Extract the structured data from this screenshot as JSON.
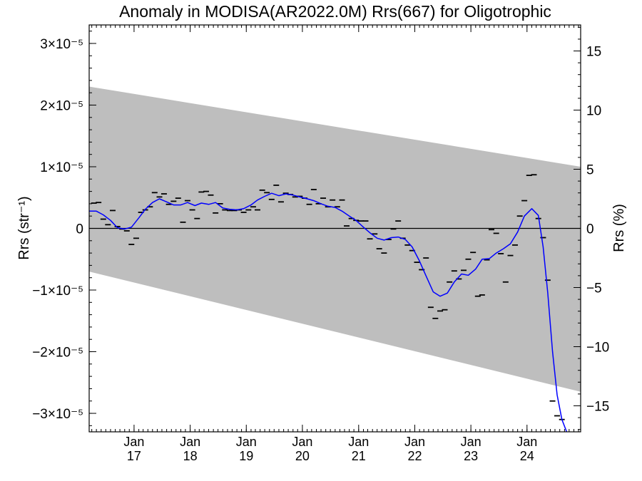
{
  "chart_data": {
    "type": "line",
    "title": "Anomaly in MODISA(AR2022.0M) Rrs(667) for Oligotrophic",
    "ylabel_left": "Rrs (str⁻¹)",
    "ylabel_right": "Rrs (%)",
    "ylim": [
      -3.3e-05,
      3.3e-05
    ],
    "ylim_right": [
      -17.2,
      17.2
    ],
    "xlim": [
      "2016-03-15",
      "2024-12-15"
    ],
    "left_ticks": [
      {
        "value": 3e-05,
        "label": "3×10⁻⁵"
      },
      {
        "value": 2e-05,
        "label": "2×10⁻⁵"
      },
      {
        "value": 1e-05,
        "label": "1×10⁻⁵"
      },
      {
        "value": 0,
        "label": "0"
      },
      {
        "value": -1e-05,
        "label": "−1×10⁻⁵"
      },
      {
        "value": -2e-05,
        "label": "−2×10⁻⁵"
      },
      {
        "value": -3e-05,
        "label": "−3×10⁻⁵"
      }
    ],
    "right_ticks": [
      {
        "value": 15,
        "label": "15"
      },
      {
        "value": 10,
        "label": "10"
      },
      {
        "value": 5,
        "label": "5"
      },
      {
        "value": 0,
        "label": "0"
      },
      {
        "value": -5,
        "label": "−5"
      },
      {
        "value": -10,
        "label": "−10"
      },
      {
        "value": -15,
        "label": "−15"
      }
    ],
    "x_ticks": [
      {
        "date": "2017-01-01",
        "month": "Jan",
        "year": "17"
      },
      {
        "date": "2018-01-01",
        "month": "Jan",
        "year": "18"
      },
      {
        "date": "2019-01-01",
        "month": "Jan",
        "year": "19"
      },
      {
        "date": "2020-01-01",
        "month": "Jan",
        "year": "20"
      },
      {
        "date": "2021-01-01",
        "month": "Jan",
        "year": "21"
      },
      {
        "date": "2022-01-01",
        "month": "Jan",
        "year": "22"
      },
      {
        "date": "2023-01-01",
        "month": "Jan",
        "year": "23"
      },
      {
        "date": "2024-01-01",
        "month": "Jan",
        "year": "24"
      }
    ],
    "uncertainty_band": {
      "color": "#bebebe",
      "upper": [
        [
          "2016-03-15",
          2.3e-05
        ],
        [
          "2024-12-15",
          1e-05
        ]
      ],
      "lower": [
        [
          "2016-03-15",
          -7e-06
        ],
        [
          "2024-12-15",
          -2.65e-05
        ]
      ]
    },
    "zero_line": true,
    "series": [
      {
        "style": "dash-marks",
        "color": "#000000",
        "points": [
          [
            "2016-04-15",
            4.1e-06
          ],
          [
            "2016-05-15",
            4.2e-06
          ],
          [
            "2016-06-15",
            1.5e-06
          ],
          [
            "2016-07-15",
            6e-07
          ],
          [
            "2016-08-15",
            2.9e-06
          ],
          [
            "2016-09-15",
            3e-07
          ],
          [
            "2016-10-15",
            -1e-07
          ],
          [
            "2016-11-15",
            -4e-07
          ],
          [
            "2016-12-15",
            -2.6e-06
          ],
          [
            "2017-01-15",
            -1.6e-06
          ],
          [
            "2017-02-15",
            2.6e-06
          ],
          [
            "2017-03-15",
            3e-06
          ],
          [
            "2017-04-15",
            3.5e-06
          ],
          [
            "2017-05-15",
            5.8e-06
          ],
          [
            "2017-06-15",
            5.1e-06
          ],
          [
            "2017-07-15",
            5.6e-06
          ],
          [
            "2017-08-15",
            3.9e-06
          ],
          [
            "2017-09-15",
            4.4e-06
          ],
          [
            "2017-10-15",
            4.9e-06
          ],
          [
            "2017-11-15",
            1e-06
          ],
          [
            "2017-12-15",
            4.5e-06
          ],
          [
            "2018-01-15",
            3e-06
          ],
          [
            "2018-02-15",
            1.6e-06
          ],
          [
            "2018-03-15",
            5.9e-06
          ],
          [
            "2018-04-15",
            6e-06
          ],
          [
            "2018-05-15",
            5.4e-06
          ],
          [
            "2018-06-15",
            2.5e-06
          ],
          [
            "2018-07-15",
            4e-06
          ],
          [
            "2018-08-15",
            3e-06
          ],
          [
            "2018-09-15",
            2.9e-06
          ],
          [
            "2018-10-15",
            2.9e-06
          ],
          [
            "2018-11-15",
            3e-06
          ],
          [
            "2018-12-15",
            2.6e-06
          ],
          [
            "2019-01-15",
            3e-06
          ],
          [
            "2019-02-15",
            3.5e-06
          ],
          [
            "2019-03-15",
            3e-06
          ],
          [
            "2019-04-15",
            6.2e-06
          ],
          [
            "2019-05-15",
            5.8e-06
          ],
          [
            "2019-06-15",
            4.7e-06
          ],
          [
            "2019-07-15",
            7e-06
          ],
          [
            "2019-08-15",
            4.3e-06
          ],
          [
            "2019-09-15",
            5.7e-06
          ],
          [
            "2019-10-15",
            5.5e-06
          ],
          [
            "2019-11-15",
            5.1e-06
          ],
          [
            "2019-12-15",
            5.2e-06
          ],
          [
            "2020-01-15",
            4.9e-06
          ],
          [
            "2020-02-15",
            3.9e-06
          ],
          [
            "2020-03-15",
            6.3e-06
          ],
          [
            "2020-04-15",
            4e-06
          ],
          [
            "2020-05-15",
            4.9e-06
          ],
          [
            "2020-06-15",
            3.5e-06
          ],
          [
            "2020-07-15",
            4.6e-06
          ],
          [
            "2020-08-15",
            3.5e-06
          ],
          [
            "2020-09-15",
            4.6e-06
          ],
          [
            "2020-10-15",
            4e-07
          ],
          [
            "2020-11-15",
            1.6e-06
          ],
          [
            "2020-12-15",
            1.3e-06
          ],
          [
            "2021-01-15",
            1.2e-06
          ],
          [
            "2021-02-15",
            1.2e-06
          ],
          [
            "2021-03-15",
            -1.7e-06
          ],
          [
            "2021-04-15",
            -9e-07
          ],
          [
            "2021-05-15",
            -3.3e-06
          ],
          [
            "2021-06-15",
            -4e-06
          ],
          [
            "2021-07-15",
            -1.8e-06
          ],
          [
            "2021-08-15",
            -1e-07
          ],
          [
            "2021-09-15",
            1.2e-06
          ],
          [
            "2021-10-15",
            -1.6e-06
          ],
          [
            "2021-11-15",
            -2.7e-06
          ],
          [
            "2021-12-15",
            -3.6e-06
          ],
          [
            "2022-01-15",
            -5.5e-06
          ],
          [
            "2022-02-15",
            -6.7e-06
          ],
          [
            "2022-03-15",
            -4.8e-06
          ],
          [
            "2022-04-15",
            -1.28e-05
          ],
          [
            "2022-05-15",
            -1.46e-05
          ],
          [
            "2022-06-15",
            -1.34e-05
          ],
          [
            "2022-07-15",
            -1.32e-05
          ],
          [
            "2022-08-15",
            -8.7e-06
          ],
          [
            "2022-09-15",
            -6.9e-06
          ],
          [
            "2022-10-15",
            -8.2e-06
          ],
          [
            "2022-11-15",
            -6.8e-06
          ],
          [
            "2022-12-15",
            -5e-06
          ],
          [
            "2023-01-15",
            -3.9e-06
          ],
          [
            "2023-02-15",
            -1.1e-05
          ],
          [
            "2023-03-15",
            -1.08e-05
          ],
          [
            "2023-04-15",
            -5.1e-06
          ],
          [
            "2023-05-15",
            -2e-07
          ],
          [
            "2023-06-15",
            -8e-07
          ],
          [
            "2023-07-15",
            -4.1e-06
          ],
          [
            "2023-08-15",
            -8.7e-06
          ],
          [
            "2023-09-15",
            -4.4e-06
          ],
          [
            "2023-10-15",
            -2.7e-06
          ],
          [
            "2023-11-15",
            2e-06
          ],
          [
            "2023-12-15",
            4.5e-06
          ],
          [
            "2024-01-15",
            8.6e-06
          ],
          [
            "2024-02-15",
            8.7e-06
          ],
          [
            "2024-03-15",
            1.6e-06
          ],
          [
            "2024-04-15",
            -1.5e-06
          ],
          [
            "2024-05-15",
            -8.4e-06
          ],
          [
            "2024-06-15",
            -2.8e-05
          ],
          [
            "2024-07-15",
            -3.04e-05
          ],
          [
            "2024-08-15",
            -3.1e-05
          ]
        ]
      },
      {
        "style": "line",
        "color": "#0000ff",
        "points": [
          [
            "2016-03-15",
            2.8e-06
          ],
          [
            "2016-05-01",
            2.8e-06
          ],
          [
            "2016-06-15",
            2.2e-06
          ],
          [
            "2016-08-01",
            1.3e-06
          ],
          [
            "2016-09-15",
            1e-07
          ],
          [
            "2016-11-01",
            -1e-07
          ],
          [
            "2016-12-15",
            2e-07
          ],
          [
            "2017-02-01",
            1.7e-06
          ],
          [
            "2017-03-15",
            3.1e-06
          ],
          [
            "2017-05-01",
            4.2e-06
          ],
          [
            "2017-06-15",
            4.8e-06
          ],
          [
            "2017-08-01",
            4.3e-06
          ],
          [
            "2017-09-15",
            3.8e-06
          ],
          [
            "2017-11-01",
            3.8e-06
          ],
          [
            "2017-12-15",
            4.2e-06
          ],
          [
            "2018-02-01",
            3.7e-06
          ],
          [
            "2018-03-15",
            4.1e-06
          ],
          [
            "2018-05-01",
            3.9e-06
          ],
          [
            "2018-06-15",
            4.2e-06
          ],
          [
            "2018-08-01",
            3.3e-06
          ],
          [
            "2018-09-15",
            3.1e-06
          ],
          [
            "2018-11-01",
            3e-06
          ],
          [
            "2018-12-15",
            3.2e-06
          ],
          [
            "2019-02-01",
            3.8e-06
          ],
          [
            "2019-03-15",
            4.6e-06
          ],
          [
            "2019-05-01",
            5.2e-06
          ],
          [
            "2019-06-15",
            5.7e-06
          ],
          [
            "2019-08-01",
            5.3e-06
          ],
          [
            "2019-09-15",
            5.6e-06
          ],
          [
            "2019-11-01",
            5.4e-06
          ],
          [
            "2019-12-15",
            5.1e-06
          ],
          [
            "2020-02-01",
            4.8e-06
          ],
          [
            "2020-03-15",
            4.5e-06
          ],
          [
            "2020-05-01",
            4e-06
          ],
          [
            "2020-06-15",
            3.6e-06
          ],
          [
            "2020-08-01",
            3.4e-06
          ],
          [
            "2020-09-15",
            2.8e-06
          ],
          [
            "2020-11-01",
            2e-06
          ],
          [
            "2020-12-15",
            1.3e-06
          ],
          [
            "2021-02-01",
            2e-07
          ],
          [
            "2021-03-15",
            -7e-07
          ],
          [
            "2021-05-01",
            -1.6e-06
          ],
          [
            "2021-06-15",
            -1.9e-06
          ],
          [
            "2021-08-01",
            -1.5e-06
          ],
          [
            "2021-09-15",
            -1.4e-06
          ],
          [
            "2021-11-01",
            -1.8e-06
          ],
          [
            "2021-12-15",
            -3e-06
          ],
          [
            "2022-02-01",
            -5.3e-06
          ],
          [
            "2022-03-15",
            -7.7e-06
          ],
          [
            "2022-05-01",
            -1.03e-05
          ],
          [
            "2022-06-15",
            -1.1e-05
          ],
          [
            "2022-08-01",
            -1.05e-05
          ],
          [
            "2022-09-15",
            -8.7e-06
          ],
          [
            "2022-11-01",
            -7.4e-06
          ],
          [
            "2022-12-15",
            -7.6e-06
          ],
          [
            "2023-02-01",
            -6.6e-06
          ],
          [
            "2023-03-15",
            -5e-06
          ],
          [
            "2023-05-01",
            -4.9e-06
          ],
          [
            "2023-06-15",
            -4e-06
          ],
          [
            "2023-08-01",
            -3.3e-06
          ],
          [
            "2023-09-15",
            -2.5e-06
          ],
          [
            "2023-11-01",
            -6e-07
          ],
          [
            "2023-12-15",
            2e-06
          ],
          [
            "2024-02-01",
            3.2e-06
          ],
          [
            "2024-03-15",
            2.1e-06
          ],
          [
            "2024-04-15",
            -3e-06
          ],
          [
            "2024-05-15",
            -1.05e-05
          ],
          [
            "2024-06-15",
            -2e-05
          ],
          [
            "2024-07-15",
            -2.7e-05
          ],
          [
            "2024-08-15",
            -3.1e-05
          ],
          [
            "2024-09-15",
            -3.3e-05
          ]
        ]
      }
    ]
  }
}
